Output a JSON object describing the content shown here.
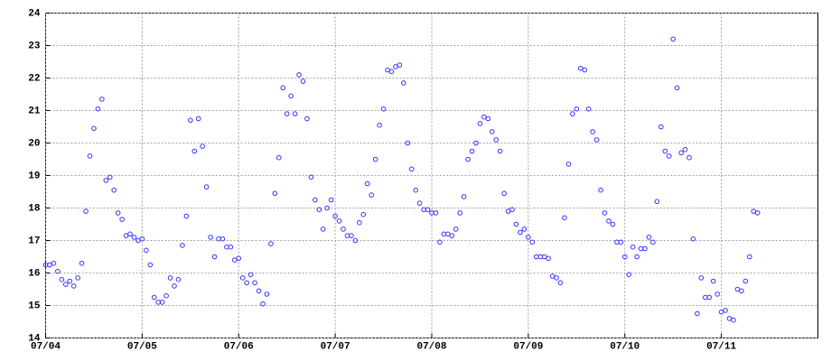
{
  "chart_data": {
    "type": "scatter",
    "color": "#3333ff",
    "grid": true,
    "xlim": [
      0,
      192
    ],
    "ylim": [
      14,
      24
    ],
    "xticks": [
      {
        "value": 0,
        "label": "07/04"
      },
      {
        "value": 24,
        "label": "07/05"
      },
      {
        "value": 48,
        "label": "07/06"
      },
      {
        "value": 72,
        "label": "07/07"
      },
      {
        "value": 96,
        "label": "07/08"
      },
      {
        "value": 120,
        "label": "07/09"
      },
      {
        "value": 144,
        "label": "07/10"
      },
      {
        "value": 168,
        "label": "07/11"
      }
    ],
    "yticks": [
      14,
      15,
      16,
      17,
      18,
      19,
      20,
      21,
      22,
      23,
      24
    ],
    "x": [
      0,
      1,
      2,
      3,
      4,
      5,
      6,
      7,
      8,
      9,
      10,
      11,
      12,
      13,
      14,
      15,
      16,
      17,
      18,
      19,
      20,
      21,
      22,
      23,
      24,
      25,
      26,
      27,
      28,
      29,
      30,
      31,
      32,
      33,
      34,
      35,
      36,
      37,
      38,
      39,
      40,
      41,
      42,
      43,
      44,
      45,
      46,
      47,
      48,
      49,
      50,
      51,
      52,
      53,
      54,
      55,
      56,
      57,
      58,
      59,
      60,
      61,
      62,
      63,
      64,
      65,
      66,
      67,
      68,
      69,
      70,
      71,
      72,
      73,
      74,
      75,
      76,
      77,
      78,
      79,
      80,
      81,
      82,
      83,
      84,
      85,
      86,
      87,
      88,
      89,
      90,
      91,
      92,
      93,
      94,
      95,
      96,
      97,
      98,
      99,
      100,
      101,
      102,
      103,
      104,
      105,
      106,
      107,
      108,
      109,
      110,
      111,
      112,
      113,
      114,
      115,
      116,
      117,
      118,
      119,
      120,
      121,
      122,
      123,
      124,
      125,
      126,
      127,
      128,
      129,
      130,
      131,
      132,
      133,
      134,
      135,
      136,
      137,
      138,
      139,
      140,
      141,
      142,
      143,
      144,
      145,
      146,
      147,
      148,
      149,
      150,
      151,
      152,
      153,
      154,
      155,
      156,
      157,
      158,
      159,
      160,
      161,
      162,
      163,
      164,
      165,
      166,
      167,
      168,
      169,
      170,
      171,
      172,
      173,
      174,
      175,
      176,
      177
    ],
    "values": [
      16.25,
      16.25,
      16.3,
      16.05,
      15.8,
      15.65,
      15.75,
      15.6,
      15.85,
      16.3,
      17.9,
      19.6,
      20.45,
      21.05,
      21.35,
      18.85,
      18.95,
      18.55,
      17.85,
      17.65,
      17.15,
      17.2,
      17.1,
      17.0,
      17.05,
      16.7,
      16.25,
      15.25,
      15.1,
      15.1,
      15.3,
      15.85,
      15.6,
      15.8,
      16.85,
      17.75,
      20.7,
      19.75,
      20.75,
      19.9,
      18.65,
      17.1,
      16.5,
      17.05,
      17.05,
      16.8,
      16.8,
      16.4,
      16.45,
      15.85,
      15.7,
      15.95,
      15.7,
      15.45,
      15.05,
      15.35,
      16.9,
      18.45,
      19.55,
      21.7,
      20.9,
      21.45,
      20.9,
      22.1,
      21.9,
      20.75,
      18.95,
      18.25,
      17.95,
      17.35,
      18.0,
      18.25,
      17.75,
      17.6,
      17.35,
      17.15,
      17.15,
      17.0,
      17.55,
      17.8,
      18.75,
      18.4,
      19.5,
      20.55,
      21.05,
      22.25,
      22.2,
      22.35,
      22.4,
      21.85,
      20.0,
      19.2,
      18.55,
      18.15,
      17.95,
      17.95,
      17.85,
      17.85,
      16.95,
      17.2,
      17.2,
      17.15,
      17.35,
      17.85,
      18.35,
      19.5,
      19.75,
      20.0,
      20.6,
      20.8,
      20.75,
      20.35,
      20.1,
      19.75,
      18.45,
      17.9,
      17.95,
      17.5,
      17.25,
      17.35,
      17.1,
      16.95,
      16.5,
      16.5,
      16.5,
      16.45,
      15.9,
      15.85,
      15.7,
      17.7,
      19.35,
      20.9,
      21.05,
      22.3,
      22.25,
      21.05,
      20.35,
      20.1,
      18.55,
      17.85,
      17.6,
      17.5,
      16.95,
      16.95,
      16.5,
      15.95,
      16.8,
      16.5,
      16.75,
      16.75,
      17.1,
      16.95,
      18.2,
      20.5,
      19.75,
      19.6,
      23.2,
      21.7,
      19.7,
      19.8,
      19.55,
      17.05,
      14.75,
      15.85,
      15.25,
      15.25,
      15.75,
      15.35,
      14.8,
      14.85,
      14.6,
      14.55,
      15.5,
      15.45,
      15.75,
      16.5,
      17.9,
      17.85
    ]
  }
}
